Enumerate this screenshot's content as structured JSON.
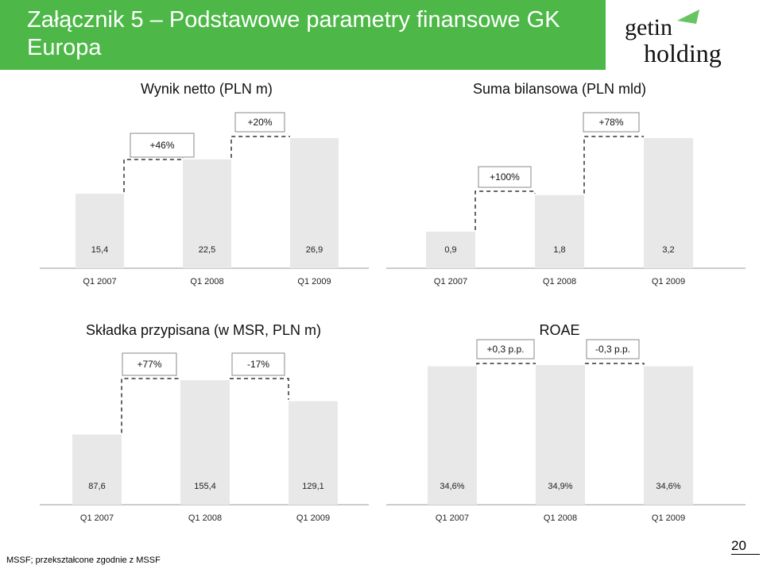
{
  "slide": {
    "title": "Załącznik 5 – Podstawowe parametry finansowe GK Europa",
    "logo": {
      "line1_a": "get",
      "line1_b": "in",
      "line2": "holding",
      "accent": "#4db848"
    },
    "footnote": "MSSF; przekształcone zgodnie z MSSF",
    "page_number": "20"
  },
  "colors": {
    "bar": "#e8e8e8",
    "title_band": "#4db848",
    "title_text": "#ffffff"
  },
  "chart_data": [
    {
      "type": "bar",
      "title": "Wynik netto (PLN m)",
      "categories": [
        "Q1 2007",
        "Q1 2008",
        "Q1 2009"
      ],
      "values": [
        15.4,
        22.5,
        26.9
      ],
      "value_labels": [
        "15,4",
        "22,5",
        "26,9"
      ],
      "changes": [
        "+46%",
        "+20%"
      ],
      "ylim": [
        0,
        26.9
      ]
    },
    {
      "type": "bar",
      "title": "Suma bilansowa (PLN mld)",
      "categories": [
        "Q1 2007",
        "Q1 2008",
        "Q1 2009"
      ],
      "values": [
        0.9,
        1.8,
        3.2
      ],
      "value_labels": [
        "0,9",
        "1,8",
        "3,2"
      ],
      "changes": [
        "+100%",
        "+78%"
      ],
      "ylim": [
        0,
        3.2
      ]
    },
    {
      "type": "bar",
      "title": "Składka przypisana (w MSR, PLN m)",
      "categories": [
        "Q1 2007",
        "Q1 2008",
        "Q1 2009"
      ],
      "values": [
        87.6,
        155.4,
        129.1
      ],
      "value_labels": [
        "87,6",
        "155,4",
        "129,1"
      ],
      "changes": [
        "+77%",
        "-17%"
      ],
      "ylim": [
        0,
        155.4
      ]
    },
    {
      "type": "bar",
      "title": "ROAE",
      "categories": [
        "Q1 2007",
        "Q1 2008",
        "Q1 2009"
      ],
      "values": [
        34.6,
        34.9,
        34.6
      ],
      "value_labels": [
        "34,6%",
        "34,9%",
        "34,6%"
      ],
      "changes": [
        "+0,3 p.p.",
        "-0,3 p.p."
      ],
      "ylim": [
        0,
        34.9
      ]
    }
  ]
}
